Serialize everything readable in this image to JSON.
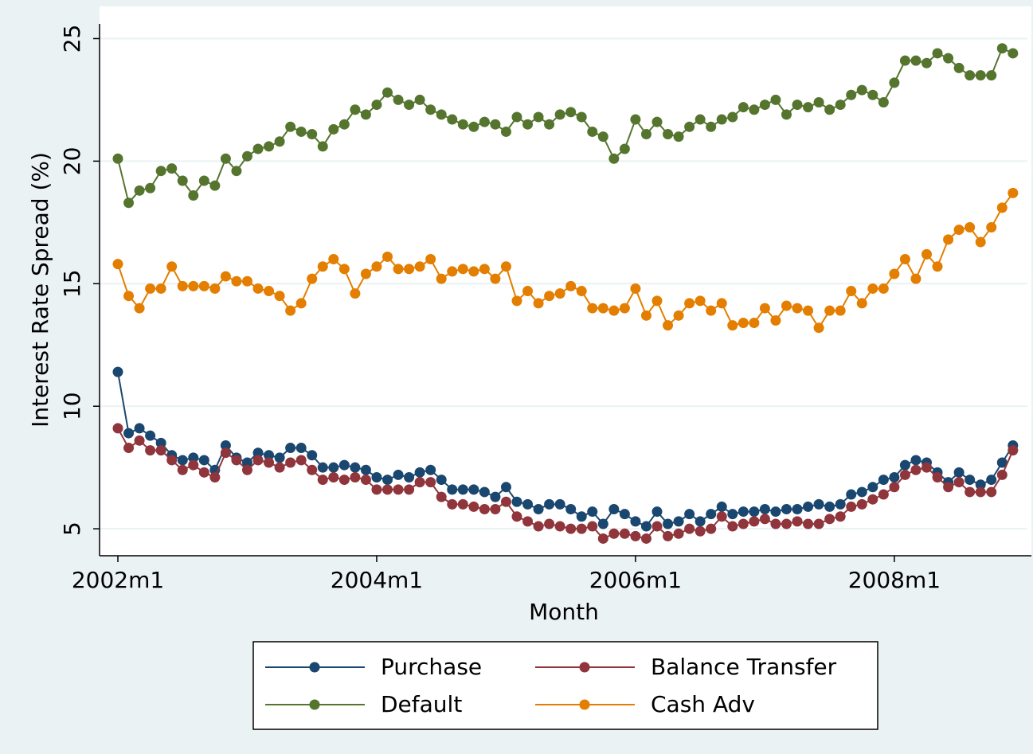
{
  "chart_data": {
    "type": "line",
    "x_label": "Month",
    "y_label": "Interest Rate Spread (%)",
    "categories": [
      "2002m1",
      null,
      null,
      null,
      null,
      null,
      null,
      null,
      null,
      null,
      null,
      null,
      null,
      null,
      null,
      null,
      null,
      null,
      null,
      null,
      null,
      null,
      null,
      null,
      "2004m1",
      null,
      null,
      null,
      null,
      null,
      null,
      null,
      null,
      null,
      null,
      null,
      null,
      null,
      null,
      null,
      null,
      null,
      null,
      null,
      null,
      null,
      null,
      null,
      "2006m1",
      null,
      null,
      null,
      null,
      null,
      null,
      null,
      null,
      null,
      null,
      null,
      null,
      null,
      null,
      null,
      null,
      null,
      null,
      null,
      null,
      null,
      null,
      null,
      "2008m1",
      null,
      null,
      null,
      null,
      null,
      null,
      null,
      null,
      null,
      null,
      null
    ],
    "ylim": [
      3.9,
      25.6
    ],
    "yticks": [
      5,
      10,
      15,
      20,
      25
    ],
    "grid": true,
    "legend": "bottom",
    "series": [
      {
        "name": "Purchase",
        "color": "#1a476f",
        "values": [
          11.4,
          8.9,
          9.1,
          8.8,
          8.5,
          8.0,
          7.8,
          7.9,
          7.8,
          7.4,
          8.4,
          7.9,
          7.7,
          8.1,
          8.0,
          7.9,
          8.3,
          8.3,
          8.0,
          7.5,
          7.5,
          7.6,
          7.5,
          7.4,
          7.1,
          7.0,
          7.2,
          7.1,
          7.3,
          7.4,
          7.0,
          6.6,
          6.6,
          6.6,
          6.5,
          6.3,
          6.7,
          6.1,
          6.0,
          5.8,
          6.0,
          6.0,
          5.8,
          5.5,
          5.7,
          5.2,
          5.8,
          5.6,
          5.3,
          5.1,
          5.7,
          5.2,
          5.3,
          5.6,
          5.3,
          5.6,
          5.9,
          5.6,
          5.7,
          5.7,
          5.8,
          5.7,
          5.8,
          5.8,
          5.9,
          6.0,
          5.9,
          6.0,
          6.4,
          6.5,
          6.7,
          7.0,
          7.1,
          7.6,
          7.8,
          7.7,
          7.3,
          6.9,
          7.3,
          7.0,
          6.8,
          7.0,
          7.7,
          8.4
        ]
      },
      {
        "name": "Balance Transfer",
        "color": "#90353b",
        "values": [
          9.1,
          8.3,
          8.6,
          8.2,
          8.2,
          7.8,
          7.4,
          7.6,
          7.3,
          7.1,
          8.1,
          7.8,
          7.4,
          7.8,
          7.7,
          7.5,
          7.7,
          7.8,
          7.4,
          7.0,
          7.1,
          7.0,
          7.1,
          7.0,
          6.6,
          6.6,
          6.6,
          6.6,
          6.9,
          6.9,
          6.3,
          6.0,
          6.0,
          5.9,
          5.8,
          5.8,
          6.1,
          5.5,
          5.3,
          5.1,
          5.2,
          5.1,
          5.0,
          5.0,
          5.1,
          4.6,
          4.8,
          4.8,
          4.7,
          4.6,
          5.1,
          4.7,
          4.8,
          5.0,
          4.9,
          5.0,
          5.5,
          5.1,
          5.2,
          5.3,
          5.4,
          5.2,
          5.2,
          5.3,
          5.2,
          5.2,
          5.4,
          5.5,
          5.9,
          6.0,
          6.2,
          6.4,
          6.7,
          7.2,
          7.4,
          7.5,
          7.1,
          6.7,
          6.9,
          6.5,
          6.5,
          6.5,
          7.2,
          8.2
        ]
      },
      {
        "name": "Default",
        "color": "#55752f",
        "values": [
          20.1,
          18.3,
          18.8,
          18.9,
          19.6,
          19.7,
          19.2,
          18.6,
          19.2,
          19.0,
          20.1,
          19.6,
          20.2,
          20.5,
          20.6,
          20.8,
          21.4,
          21.2,
          21.1,
          20.6,
          21.3,
          21.5,
          22.1,
          21.9,
          22.3,
          22.8,
          22.5,
          22.3,
          22.5,
          22.1,
          21.9,
          21.7,
          21.5,
          21.4,
          21.6,
          21.5,
          21.2,
          21.8,
          21.5,
          21.8,
          21.5,
          21.9,
          22.0,
          21.8,
          21.2,
          21.0,
          20.1,
          20.5,
          21.7,
          21.1,
          21.6,
          21.1,
          21.0,
          21.4,
          21.7,
          21.4,
          21.7,
          21.8,
          22.2,
          22.1,
          22.3,
          22.5,
          21.9,
          22.3,
          22.2,
          22.4,
          22.1,
          22.3,
          22.7,
          22.9,
          22.7,
          22.4,
          23.2,
          24.1,
          24.1,
          24.0,
          24.4,
          24.2,
          23.8,
          23.5,
          23.5,
          23.5,
          24.6,
          24.4
        ]
      },
      {
        "name": "Cash Adv",
        "color": "#e37e00",
        "values": [
          15.8,
          14.5,
          14.0,
          14.8,
          14.8,
          15.7,
          14.9,
          14.9,
          14.9,
          14.8,
          15.3,
          15.1,
          15.1,
          14.8,
          14.7,
          14.5,
          13.9,
          14.2,
          15.2,
          15.7,
          16.0,
          15.6,
          14.6,
          15.4,
          15.7,
          16.1,
          15.6,
          15.6,
          15.7,
          16.0,
          15.2,
          15.5,
          15.6,
          15.5,
          15.6,
          15.2,
          15.7,
          14.3,
          14.7,
          14.2,
          14.5,
          14.6,
          14.9,
          14.7,
          14.0,
          14.0,
          13.9,
          14.0,
          14.8,
          13.7,
          14.3,
          13.3,
          13.7,
          14.2,
          14.3,
          13.9,
          14.2,
          13.3,
          13.4,
          13.4,
          14.0,
          13.5,
          14.1,
          14.0,
          13.9,
          13.2,
          13.9,
          13.9,
          14.7,
          14.2,
          14.8,
          14.8,
          15.4,
          16.0,
          15.2,
          16.2,
          15.7,
          16.8,
          17.2,
          17.3,
          16.7,
          17.3,
          18.1,
          18.7
        ]
      }
    ]
  }
}
